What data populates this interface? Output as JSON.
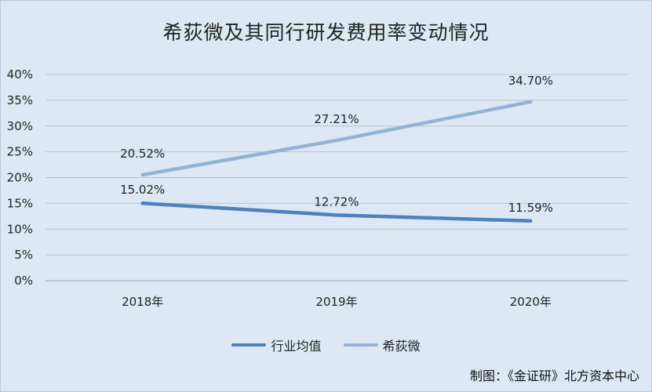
{
  "chart_data": {
    "type": "line",
    "title": "希荻微及其同行研发费用率变动情况",
    "categories": [
      "2018年",
      "2019年",
      "2020年"
    ],
    "ylim": [
      0,
      40
    ],
    "y_ticks": [
      "0%",
      "5%",
      "10%",
      "15%",
      "20%",
      "25%",
      "30%",
      "35%",
      "40%"
    ],
    "grid": true,
    "legend_position": "bottom",
    "series": [
      {
        "name": "行业均值",
        "values": [
          15.02,
          12.72,
          11.59
        ],
        "labels": [
          "15.02%",
          "12.72%",
          "11.59%"
        ],
        "color": "#4f81bd"
      },
      {
        "name": "希荻微",
        "values": [
          20.52,
          27.21,
          34.7
        ],
        "labels": [
          "20.52%",
          "27.21%",
          "34.70%"
        ],
        "color": "#95b3d7"
      }
    ]
  },
  "credit": "制图：《金证研》北方资本中心"
}
